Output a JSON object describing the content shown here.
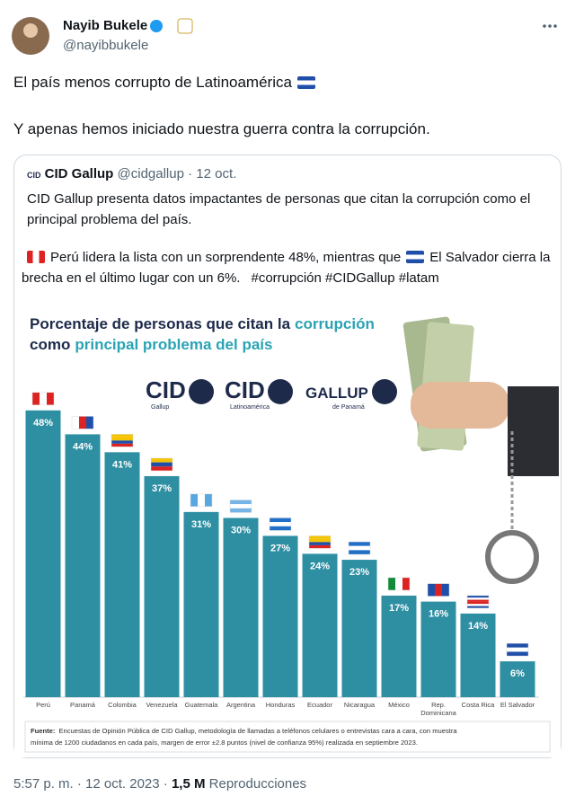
{
  "author": {
    "name": "Nayib Bukele",
    "handle": "@nayibbukele"
  },
  "text": [
    "El país menos corrupto de Latinoamérica",
    "Y apenas hemos iniciado nuestra guerra contra la corrupción."
  ],
  "quote": {
    "name": "CID Gallup",
    "handle": "@cidgallup",
    "separator": "·",
    "date": "12 oct.",
    "paragraph1": "CID Gallup presenta datos impactantes de personas que citan la corrupción como el principal problema del país.",
    "paragraph2": [
      "Perú lidera la lista con un sorprendente 48%, mientras que",
      "El Salvador cierra la brecha en el último lugar con un 6%.",
      "#corrupción #CIDGallup #latam"
    ]
  },
  "chart_data": {
    "type": "bar",
    "title": {
      "line1": [
        "Porcentaje de personas que citan la",
        "corrupción"
      ],
      "line2": [
        "como",
        "principal problema del país"
      ]
    },
    "logos": [
      [
        "CID",
        "Gallup"
      ],
      [
        "CID",
        "Latinoamérica"
      ],
      [
        "GALLUP",
        "de Panamá"
      ]
    ],
    "categories": [
      "Perú",
      "Panamá",
      "Colombia",
      "Venezuela",
      "Guatemala",
      "Argentina",
      "Honduras",
      "Ecuador",
      "Nicaragua",
      "México",
      "Rep. Dominicana",
      "Costa Rica",
      "El Salvador"
    ],
    "values": [
      48,
      44,
      41,
      37,
      31,
      30,
      27,
      24,
      23,
      17,
      16,
      14,
      6
    ],
    "value_labels": [
      "48%",
      "44%",
      "41%",
      "37%",
      "31%",
      "30%",
      "27%",
      "24%",
      "23%",
      "17%",
      "16%",
      "14%",
      "6%"
    ],
    "color": "#2e8fa3",
    "source": {
      "label": "Fuente:",
      "lines": [
        "Encuestas de Opinión Pública de CID Gallup, metodología de llamadas a teléfonos celulares o entrevistas cara a cara, con muestra",
        "mínima de 1200 ciudadanos en cada país, margen de error ±2.8 puntos (nivel de confianza 95%) realizada en septiembre 2023."
      ]
    }
  },
  "footer": {
    "time": "5:57 p. m.",
    "separator": "·",
    "date": "12 oct. 2023",
    "views": "1,5 M",
    "views_label": "Reproducciones"
  }
}
